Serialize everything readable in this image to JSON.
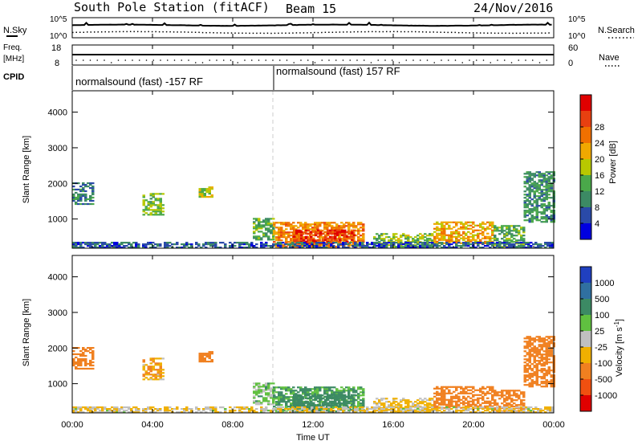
{
  "header": {
    "station": "South Pole Station (fitACF)",
    "beam": "Beam 15",
    "date": "24/Nov/2016"
  },
  "noise_panel": {
    "left_label": "N.Sky",
    "right_label": "N.Search",
    "left_ticks": [
      "10^5",
      "10^0"
    ],
    "right_ticks": [
      "10^5",
      "10^0"
    ]
  },
  "freq_panel": {
    "left_label_1": "Freq.",
    "left_label_2": "[MHz]",
    "right_label": "Nave",
    "left_ticks": [
      "18",
      "8"
    ],
    "right_ticks": [
      "60",
      "0"
    ]
  },
  "cpid_panel": {
    "label": "CPID",
    "segments": [
      "normalsound (fast) -157 RF",
      "normalsound (fast) 157 RF"
    ]
  },
  "x_axis": {
    "label": "Time UT",
    "ticks": [
      "00:00",
      "04:00",
      "08:00",
      "12:00",
      "16:00",
      "20:00",
      "00:00"
    ]
  },
  "chart_data": [
    {
      "type": "heatmap",
      "title": "Power",
      "ylabel": "Slant Range [km]",
      "xlabel": "Time UT",
      "xlim": [
        0,
        24
      ],
      "ylim": [
        180,
        4600
      ],
      "y_ticks": [
        "1000",
        "2000",
        "3000",
        "4000"
      ],
      "colorbar": {
        "label": "Power [dB]",
        "ticks": [
          "4",
          "8",
          "12",
          "16",
          "20",
          "24",
          "28"
        ],
        "colors": [
          "#0000e0",
          "#2a4aa8",
          "#3c8a64",
          "#4aa84a",
          "#b8c800",
          "#f0a800",
          "#f07000",
          "#e84010",
          "#e00000"
        ]
      }
    },
    {
      "type": "heatmap",
      "title": "Velocity",
      "ylabel": "Slant Range [km]",
      "xlabel": "Time UT",
      "xlim": [
        0,
        24
      ],
      "ylim": [
        180,
        4600
      ],
      "y_ticks": [
        "1000",
        "2000",
        "3000",
        "4000"
      ],
      "colorbar": {
        "label": "Velocity [m s^-1]",
        "ticks": [
          "1000",
          "500",
          "100",
          "25",
          "-25",
          "-100",
          "-500",
          "-1000"
        ],
        "colors": [
          "#2040c0",
          "#3070a0",
          "#3c8a64",
          "#60c040",
          "#c0c0c0",
          "#f0b000",
          "#f08020",
          "#f05010",
          "#e00000"
        ]
      }
    }
  ]
}
